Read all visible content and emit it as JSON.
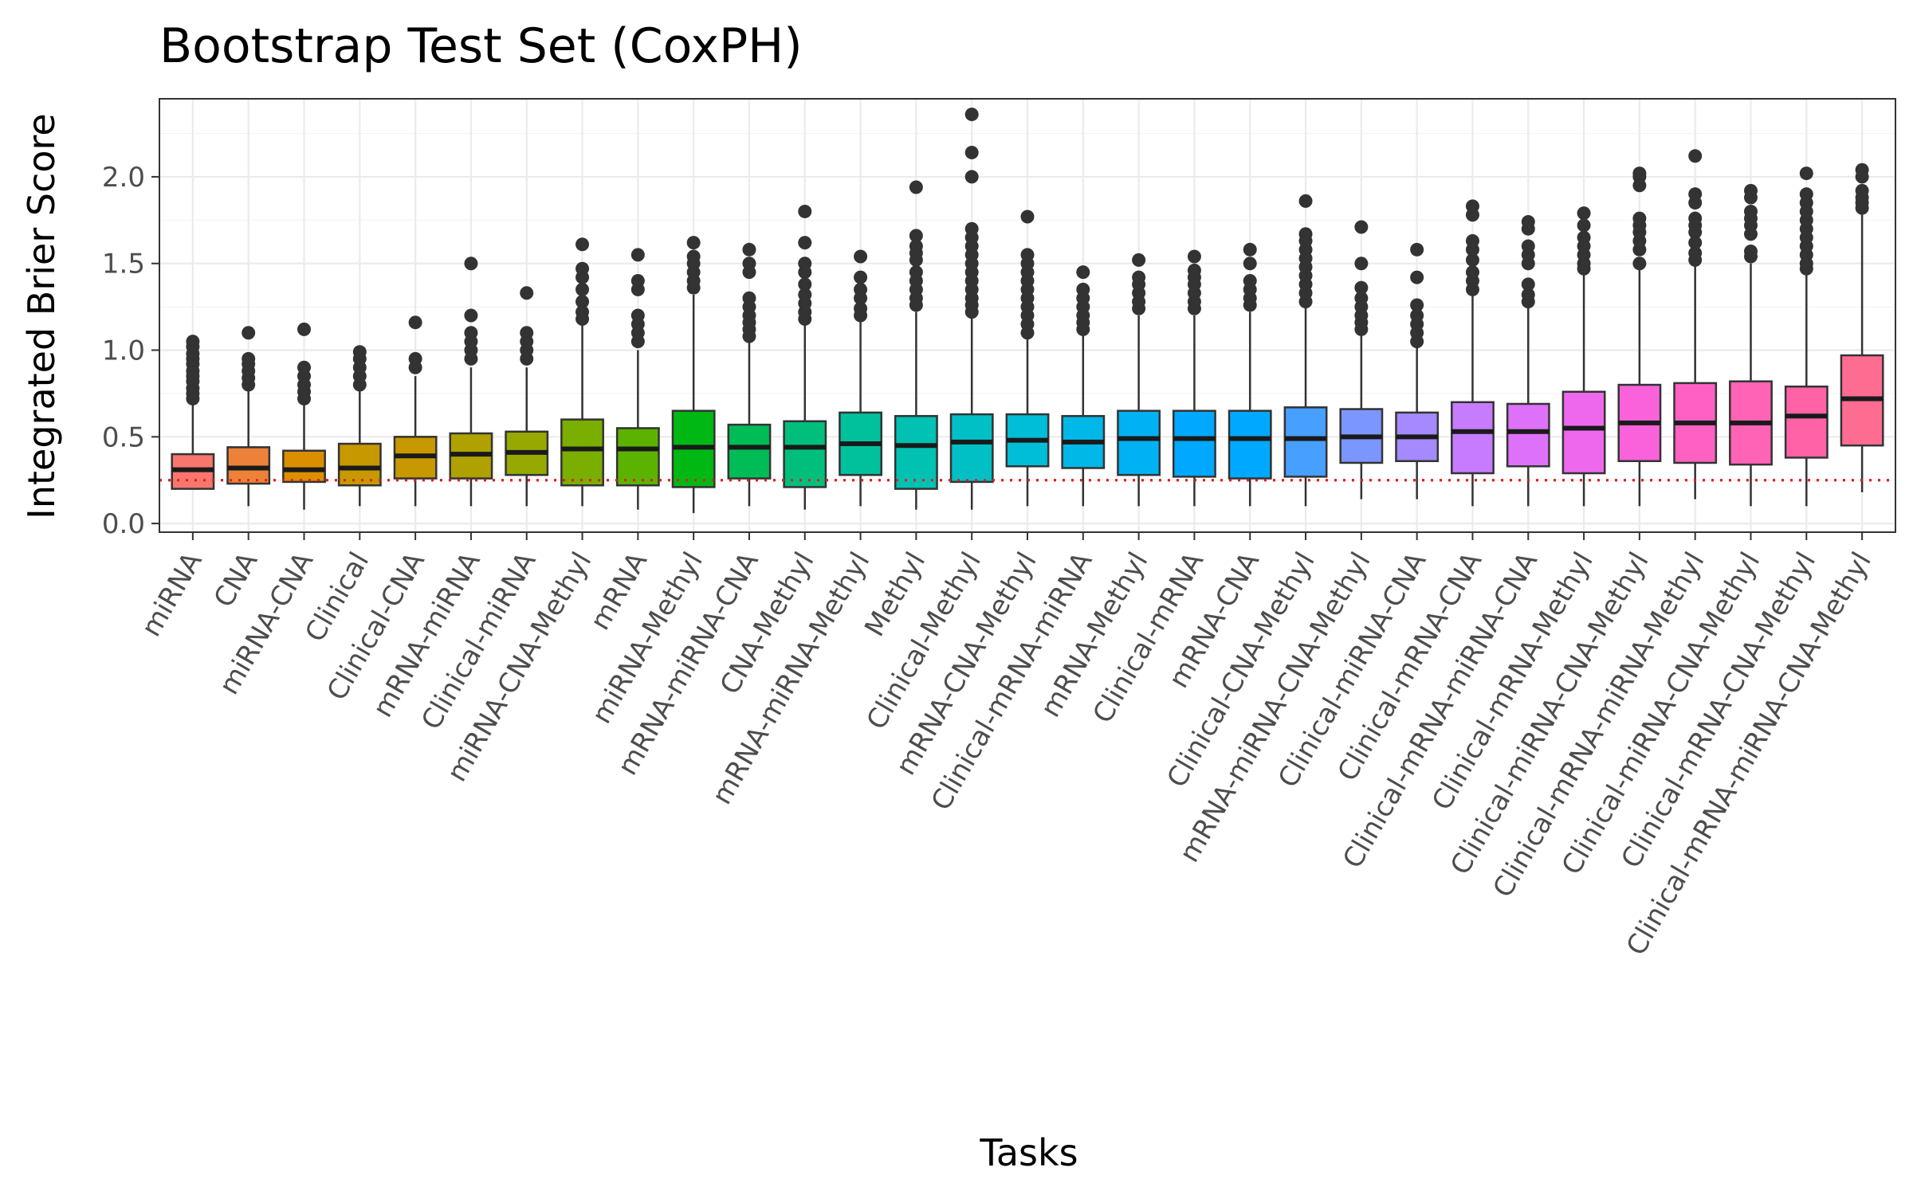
{
  "chart_data": {
    "type": "boxplot",
    "title": "Bootstrap Test Set (CoxPH)",
    "xlabel": "Tasks",
    "ylabel": "Integrated Brier Score",
    "ylim": [
      -0.05,
      2.45
    ],
    "yticks": [
      0.0,
      0.5,
      1.0,
      1.5,
      2.0
    ],
    "ytick_labels": [
      "0.0",
      "0.5",
      "1.0",
      "1.5",
      "2.0"
    ],
    "grid": true,
    "legend": "none",
    "reference_line": {
      "y": 0.25,
      "style": "dotted",
      "color": "#e8191f"
    },
    "boxes": [
      {
        "category": "miRNA",
        "color": "#F8766D",
        "lower_whisker": 0.2,
        "q1": 0.2,
        "median": 0.31,
        "q3": 0.4,
        "upper_whisker": 0.7,
        "outliers": [
          0.72,
          0.75,
          0.78,
          0.82,
          0.85,
          0.88,
          0.92,
          0.95,
          0.98,
          1.02,
          1.05
        ]
      },
      {
        "category": "CNA",
        "color": "#EC8239",
        "lower_whisker": 0.1,
        "q1": 0.23,
        "median": 0.32,
        "q3": 0.44,
        "upper_whisker": 0.77,
        "outliers": [
          0.8,
          0.84,
          0.88,
          0.92,
          0.95,
          1.1
        ]
      },
      {
        "category": "miRNA-CNA",
        "color": "#DB8E00",
        "lower_whisker": 0.08,
        "q1": 0.24,
        "median": 0.31,
        "q3": 0.42,
        "upper_whisker": 0.7,
        "outliers": [
          0.72,
          0.76,
          0.8,
          0.85,
          0.9,
          1.12
        ]
      },
      {
        "category": "Clinical",
        "color": "#C79800",
        "lower_whisker": 0.1,
        "q1": 0.22,
        "median": 0.32,
        "q3": 0.46,
        "upper_whisker": 0.78,
        "outliers": [
          0.8,
          0.85,
          0.9,
          0.95,
          0.99
        ]
      },
      {
        "category": "Clinical-CNA",
        "color": "#C79800",
        "lower_whisker": 0.1,
        "q1": 0.26,
        "median": 0.39,
        "q3": 0.5,
        "upper_whisker": 0.85,
        "outliers": [
          0.9,
          0.95,
          1.16
        ]
      },
      {
        "category": "mRNA-miRNA",
        "color": "#AFA100",
        "lower_whisker": 0.1,
        "q1": 0.26,
        "median": 0.4,
        "q3": 0.52,
        "upper_whisker": 0.9,
        "outliers": [
          0.95,
          1.0,
          1.05,
          1.1,
          1.2,
          1.5
        ]
      },
      {
        "category": "Clinical-miRNA",
        "color": "#96A900",
        "lower_whisker": 0.1,
        "q1": 0.28,
        "median": 0.41,
        "q3": 0.53,
        "upper_whisker": 0.9,
        "outliers": [
          0.95,
          1.0,
          1.05,
          1.1,
          1.33
        ]
      },
      {
        "category": "miRNA-CNA-Methyl",
        "color": "#7AAE00",
        "lower_whisker": 0.1,
        "q1": 0.22,
        "median": 0.43,
        "q3": 0.6,
        "upper_whisker": 1.15,
        "outliers": [
          1.18,
          1.22,
          1.28,
          1.35,
          1.42,
          1.47,
          1.61
        ]
      },
      {
        "category": "mRNA",
        "color": "#5BB300",
        "lower_whisker": 0.08,
        "q1": 0.22,
        "median": 0.43,
        "q3": 0.55,
        "upper_whisker": 1.0,
        "outliers": [
          1.05,
          1.1,
          1.15,
          1.2,
          1.35,
          1.4,
          1.55
        ]
      },
      {
        "category": "miRNA-Methyl",
        "color": "#00B813",
        "lower_whisker": 0.06,
        "q1": 0.21,
        "median": 0.44,
        "q3": 0.65,
        "upper_whisker": 1.32,
        "outliers": [
          1.36,
          1.4,
          1.45,
          1.5,
          1.54,
          1.62
        ]
      },
      {
        "category": "mRNA-miRNA-CNA",
        "color": "#00BC56",
        "lower_whisker": 0.1,
        "q1": 0.26,
        "median": 0.44,
        "q3": 0.57,
        "upper_whisker": 1.05,
        "outliers": [
          1.08,
          1.12,
          1.16,
          1.2,
          1.25,
          1.3,
          1.45,
          1.5,
          1.58
        ]
      },
      {
        "category": "CNA-Methyl",
        "color": "#00BF7D",
        "lower_whisker": 0.08,
        "q1": 0.21,
        "median": 0.44,
        "q3": 0.59,
        "upper_whisker": 1.15,
        "outliers": [
          1.18,
          1.22,
          1.27,
          1.32,
          1.38,
          1.45,
          1.5,
          1.62,
          1.8
        ]
      },
      {
        "category": "mRNA-miRNA-Methyl",
        "color": "#00C19C",
        "lower_whisker": 0.1,
        "q1": 0.28,
        "median": 0.46,
        "q3": 0.64,
        "upper_whisker": 1.18,
        "outliers": [
          1.2,
          1.24,
          1.3,
          1.35,
          1.42,
          1.54
        ]
      },
      {
        "category": "Methyl",
        "color": "#00C1B2",
        "lower_whisker": 0.08,
        "q1": 0.2,
        "median": 0.45,
        "q3": 0.62,
        "upper_whisker": 1.22,
        "outliers": [
          1.26,
          1.3,
          1.35,
          1.4,
          1.45,
          1.52,
          1.56,
          1.6,
          1.66,
          1.94
        ]
      },
      {
        "category": "Clinical-Methyl",
        "color": "#00C0C6",
        "lower_whisker": 0.08,
        "q1": 0.24,
        "median": 0.47,
        "q3": 0.63,
        "upper_whisker": 1.2,
        "outliers": [
          1.22,
          1.26,
          1.3,
          1.35,
          1.4,
          1.45,
          1.5,
          1.55,
          1.6,
          1.65,
          1.7,
          2.0,
          2.14,
          2.36
        ]
      },
      {
        "category": "mRNA-CNA-Methyl",
        "color": "#00BDD8",
        "lower_whisker": 0.1,
        "q1": 0.33,
        "median": 0.48,
        "q3": 0.63,
        "upper_whisker": 1.08,
        "outliers": [
          1.1,
          1.15,
          1.2,
          1.25,
          1.3,
          1.35,
          1.4,
          1.45,
          1.5,
          1.55,
          1.77
        ]
      },
      {
        "category": "Clinical-mRNA-miRNA",
        "color": "#00B8E7",
        "lower_whisker": 0.1,
        "q1": 0.32,
        "median": 0.47,
        "q3": 0.62,
        "upper_whisker": 1.1,
        "outliers": [
          1.12,
          1.16,
          1.2,
          1.25,
          1.3,
          1.35,
          1.45
        ]
      },
      {
        "category": "mRNA-Methyl",
        "color": "#00B2F3",
        "lower_whisker": 0.1,
        "q1": 0.28,
        "median": 0.49,
        "q3": 0.65,
        "upper_whisker": 1.2,
        "outliers": [
          1.24,
          1.28,
          1.33,
          1.38,
          1.42,
          1.52
        ]
      },
      {
        "category": "Clinical-mRNA",
        "color": "#00A9FF",
        "lower_whisker": 0.1,
        "q1": 0.27,
        "median": 0.49,
        "q3": 0.65,
        "upper_whisker": 1.2,
        "outliers": [
          1.24,
          1.28,
          1.33,
          1.38,
          1.42,
          1.46,
          1.54
        ]
      },
      {
        "category": "mRNA-CNA",
        "color": "#00A9FF",
        "lower_whisker": 0.1,
        "q1": 0.26,
        "median": 0.49,
        "q3": 0.65,
        "upper_whisker": 1.22,
        "outliers": [
          1.26,
          1.3,
          1.35,
          1.4,
          1.5,
          1.58
        ]
      },
      {
        "category": "Clinical-CNA-Methyl",
        "color": "#479FFF",
        "lower_whisker": 0.1,
        "q1": 0.27,
        "median": 0.49,
        "q3": 0.67,
        "upper_whisker": 1.25,
        "outliers": [
          1.28,
          1.33,
          1.38,
          1.43,
          1.48,
          1.53,
          1.58,
          1.63,
          1.67,
          1.86
        ]
      },
      {
        "category": "mRNA-miRNA-CNA-Methyl",
        "color": "#7C96FF",
        "lower_whisker": 0.14,
        "q1": 0.35,
        "median": 0.5,
        "q3": 0.66,
        "upper_whisker": 1.1,
        "outliers": [
          1.12,
          1.16,
          1.2,
          1.25,
          1.3,
          1.36,
          1.5,
          1.71
        ]
      },
      {
        "category": "Clinical-miRNA-CNA",
        "color": "#A58AFF",
        "lower_whisker": 0.14,
        "q1": 0.36,
        "median": 0.5,
        "q3": 0.64,
        "upper_whisker": 1.02,
        "outliers": [
          1.05,
          1.1,
          1.15,
          1.2,
          1.26,
          1.42,
          1.58
        ]
      },
      {
        "category": "Clinical-mRNA-CNA",
        "color": "#C77CFF",
        "lower_whisker": 0.1,
        "q1": 0.29,
        "median": 0.53,
        "q3": 0.7,
        "upper_whisker": 1.32,
        "outliers": [
          1.35,
          1.4,
          1.45,
          1.52,
          1.58,
          1.63,
          1.78,
          1.83
        ]
      },
      {
        "category": "Clinical-mRNA-miRNA-CNA",
        "color": "#DE71F9",
        "lower_whisker": 0.1,
        "q1": 0.33,
        "median": 0.53,
        "q3": 0.69,
        "upper_whisker": 1.25,
        "outliers": [
          1.28,
          1.32,
          1.38,
          1.5,
          1.55,
          1.6,
          1.7,
          1.74
        ]
      },
      {
        "category": "Clinical-mRNA-Methyl",
        "color": "#ED68ED",
        "lower_whisker": 0.1,
        "q1": 0.29,
        "median": 0.55,
        "q3": 0.76,
        "upper_whisker": 1.44,
        "outliers": [
          1.47,
          1.5,
          1.55,
          1.6,
          1.65,
          1.72,
          1.79
        ]
      },
      {
        "category": "Clinical-miRNA-CNA-Methyl",
        "color": "#FA62DB",
        "lower_whisker": 0.1,
        "q1": 0.36,
        "median": 0.58,
        "q3": 0.8,
        "upper_whisker": 1.48,
        "outliers": [
          1.5,
          1.58,
          1.63,
          1.68,
          1.72,
          1.76,
          1.95,
          2.0,
          2.02
        ]
      },
      {
        "category": "Clinical-mRNA-miRNA-Methyl",
        "color": "#FF61C3",
        "lower_whisker": 0.14,
        "q1": 0.35,
        "median": 0.58,
        "q3": 0.81,
        "upper_whisker": 1.5,
        "outliers": [
          1.52,
          1.56,
          1.62,
          1.68,
          1.72,
          1.76,
          1.85,
          1.9,
          2.12
        ]
      },
      {
        "category": "Clinical-miRNA-CNA-Methyl",
        "color": "#FF63B6",
        "lower_whisker": 0.1,
        "q1": 0.34,
        "median": 0.58,
        "q3": 0.82,
        "upper_whisker": 1.5,
        "outliers": [
          1.54,
          1.57,
          1.67,
          1.72,
          1.76,
          1.8,
          1.88,
          1.92
        ]
      },
      {
        "category": "Clinical-mRNA-CNA-Methyl",
        "color": "#FF62A7",
        "lower_whisker": 0.1,
        "q1": 0.38,
        "median": 0.62,
        "q3": 0.79,
        "upper_whisker": 1.44,
        "outliers": [
          1.47,
          1.5,
          1.55,
          1.6,
          1.65,
          1.7,
          1.75,
          1.8,
          1.85,
          1.9,
          2.02
        ]
      },
      {
        "category": "Clinical-mRNA-miRNA-CNA-Methyl",
        "color": "#FF6C91",
        "lower_whisker": 0.18,
        "q1": 0.45,
        "median": 0.72,
        "q3": 0.97,
        "upper_whisker": 1.8,
        "outliers": [
          1.82,
          1.85,
          1.88,
          1.92,
          2.0,
          2.04
        ]
      }
    ]
  }
}
